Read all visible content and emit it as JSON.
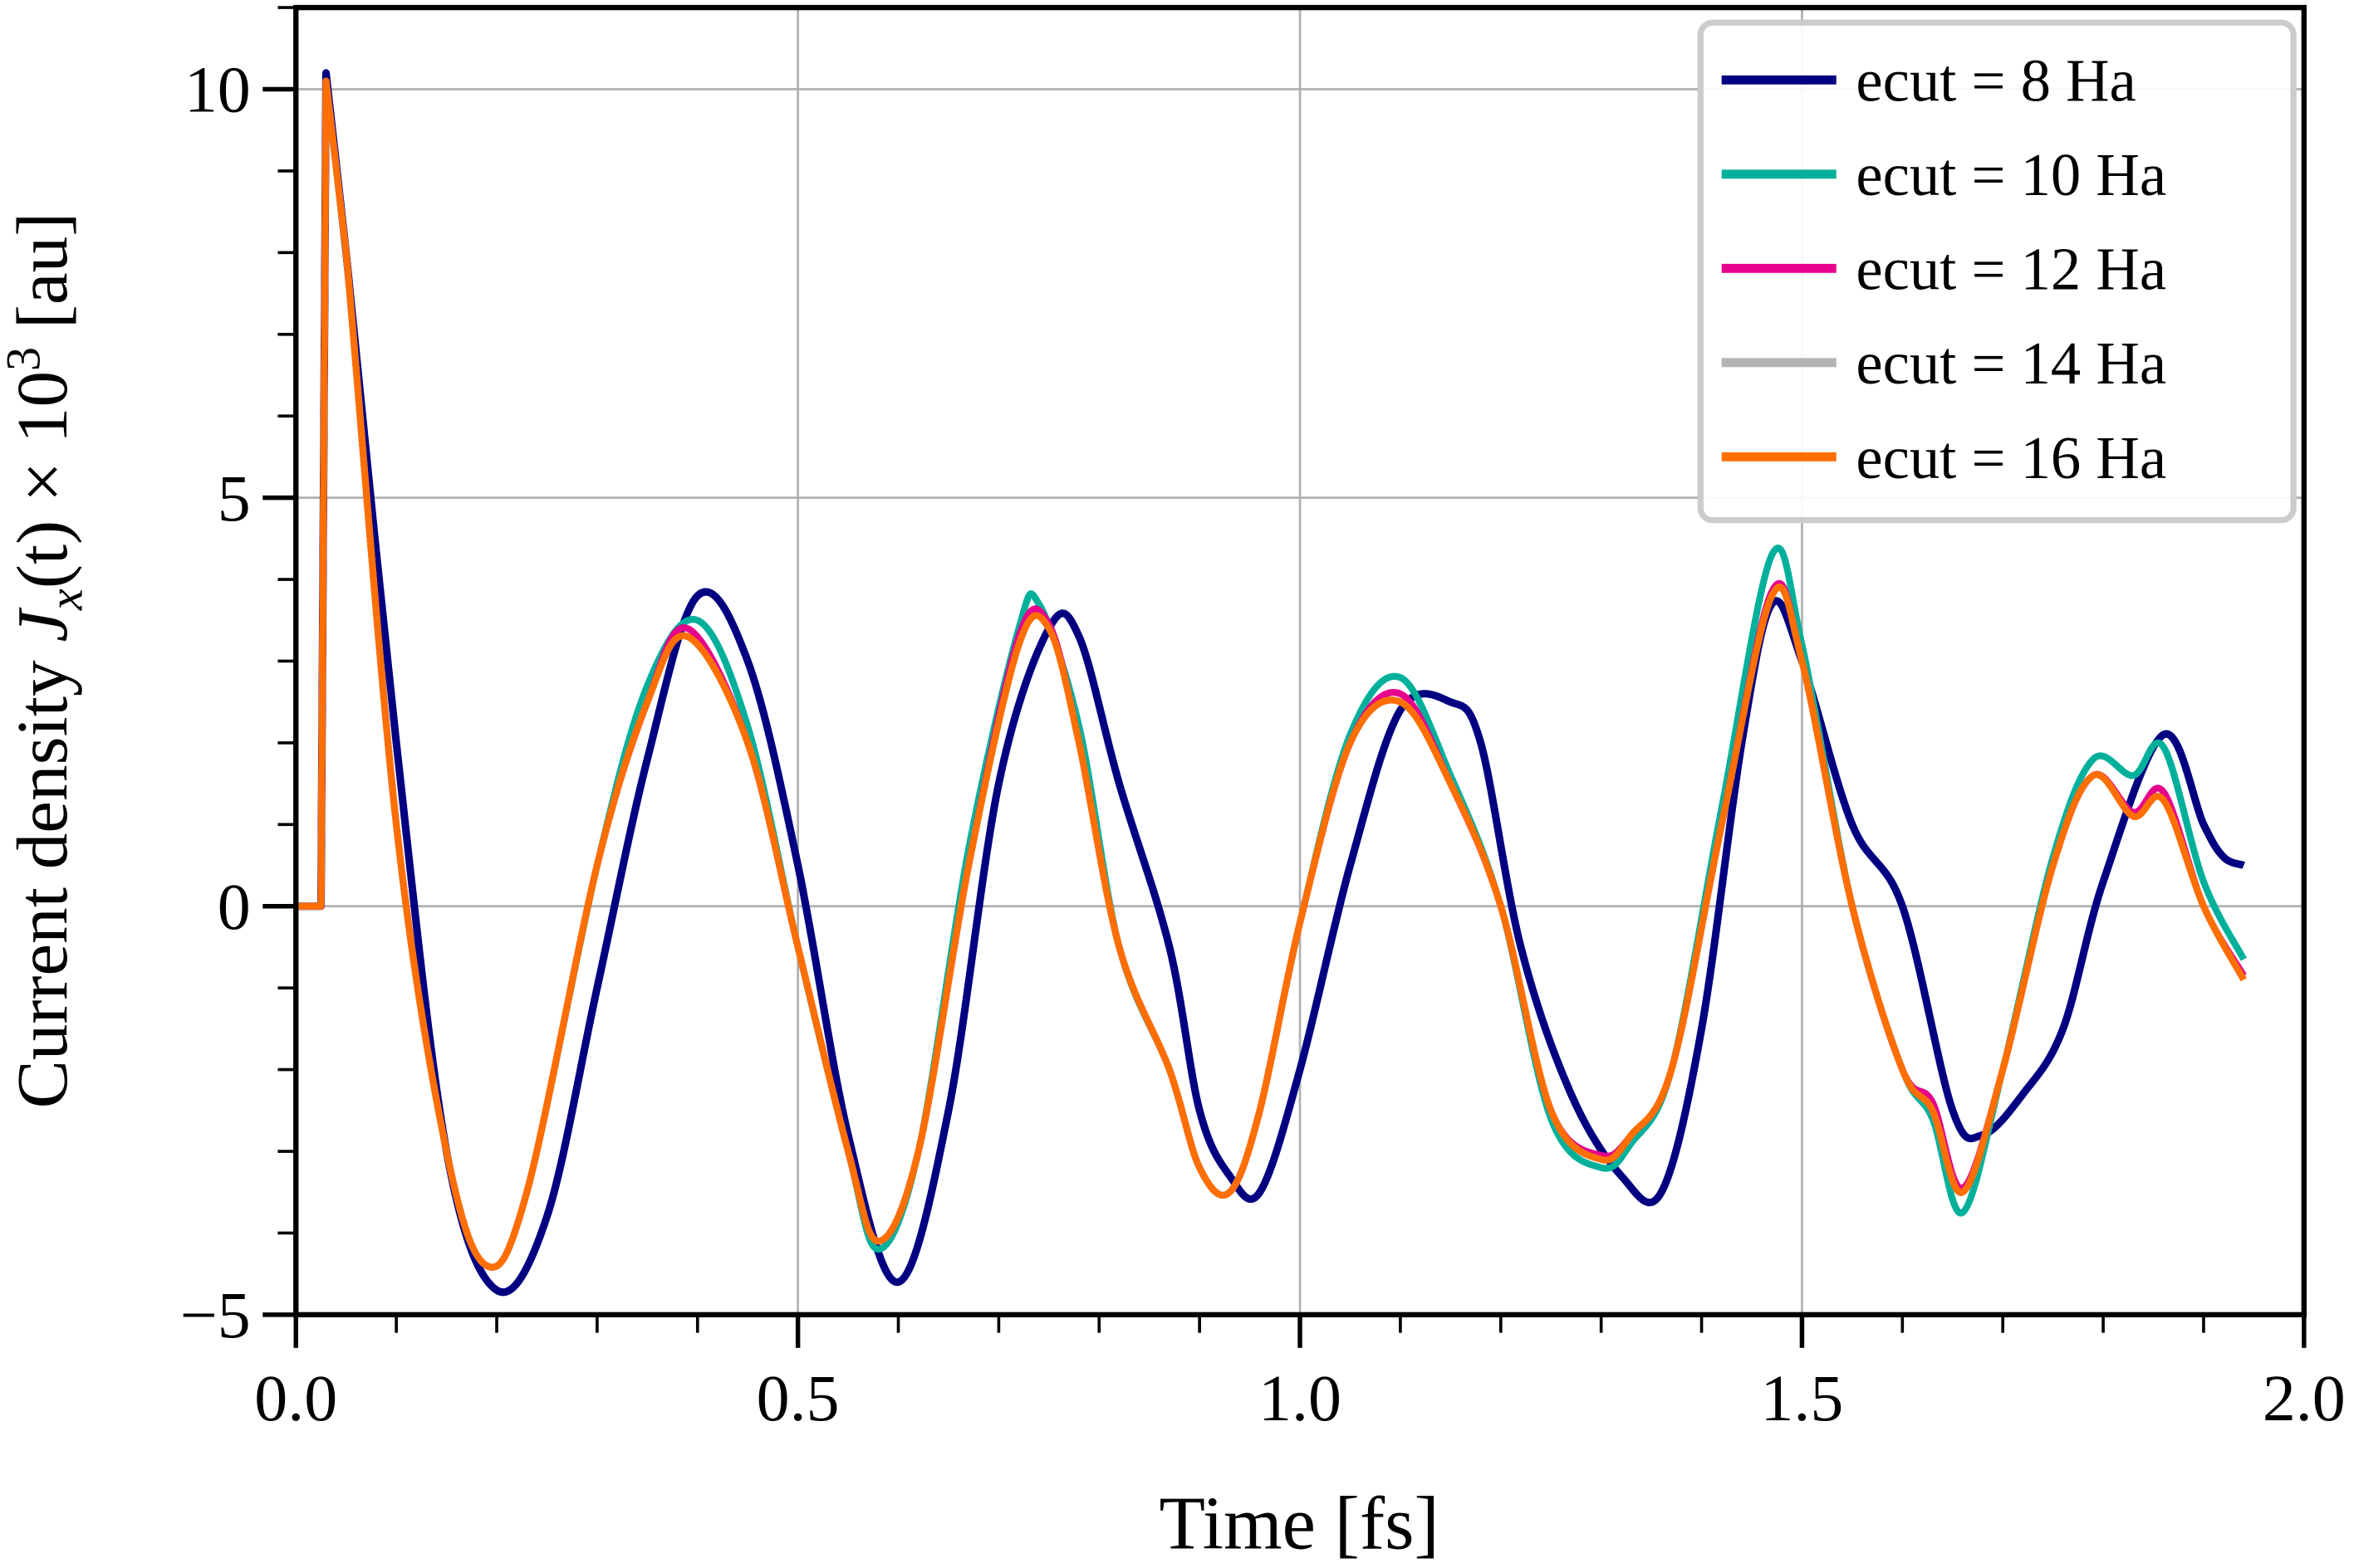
{
  "chart_data": {
    "type": "line",
    "xlabel": "Time [fs]",
    "ylabel_parts": {
      "prefix": "Current density ",
      "J": "J",
      "sub": "x",
      "mid": "(t) × 10",
      "sup": "3",
      "suffix": " [au]"
    },
    "xlim": [
      0.0,
      2.0
    ],
    "ylim": [
      -5,
      11
    ],
    "xticks": [
      0.0,
      0.5,
      1.0,
      1.5,
      2.0
    ],
    "xtick_labels": [
      "0.0",
      "0.5",
      "1.0",
      "1.5",
      "2.0"
    ],
    "yticks": [
      -5,
      0,
      5,
      10
    ],
    "ytick_labels": [
      "−5",
      "0",
      "5",
      "10"
    ],
    "grid": true,
    "legend_position": "top-right",
    "series": [
      {
        "name": "ecut = 8 Ha",
        "color": "#000080",
        "points": [
          [
            0,
            0
          ],
          [
            0.025,
            0
          ],
          [
            0.03,
            10.2
          ],
          [
            0.05,
            8
          ],
          [
            0.1,
            2
          ],
          [
            0.15,
            -3
          ],
          [
            0.2,
            -4.7
          ],
          [
            0.25,
            -3.8
          ],
          [
            0.3,
            -1
          ],
          [
            0.35,
            1.8
          ],
          [
            0.4,
            3.8
          ],
          [
            0.45,
            3
          ],
          [
            0.5,
            0.5
          ],
          [
            0.55,
            -2.8
          ],
          [
            0.6,
            -4.6
          ],
          [
            0.65,
            -2.5
          ],
          [
            0.7,
            1.5
          ],
          [
            0.75,
            3.4
          ],
          [
            0.78,
            3.3
          ],
          [
            0.82,
            1.5
          ],
          [
            0.87,
            -0.5
          ],
          [
            0.9,
            -2.5
          ],
          [
            0.93,
            -3.3
          ],
          [
            0.96,
            -3.5
          ],
          [
            1.0,
            -2
          ],
          [
            1.05,
            0.5
          ],
          [
            1.1,
            2.4
          ],
          [
            1.15,
            2.5
          ],
          [
            1.18,
            2
          ],
          [
            1.22,
            -0.5
          ],
          [
            1.27,
            -2.3
          ],
          [
            1.32,
            -3.3
          ],
          [
            1.36,
            -3.5
          ],
          [
            1.4,
            -1.5
          ],
          [
            1.44,
            2
          ],
          [
            1.47,
            3.7
          ],
          [
            1.5,
            3
          ],
          [
            1.55,
            1
          ],
          [
            1.6,
            0
          ],
          [
            1.65,
            -2.5
          ],
          [
            1.68,
            -2.8
          ],
          [
            1.72,
            -2.3
          ],
          [
            1.76,
            -1.5
          ],
          [
            1.8,
            0.3
          ],
          [
            1.86,
            2.1
          ],
          [
            1.9,
            1
          ],
          [
            1.92,
            0.6
          ],
          [
            1.94,
            0.5
          ]
        ]
      },
      {
        "name": "ecut = 10 Ha",
        "color": "#00b09b",
        "points": [
          [
            0,
            0
          ],
          [
            0.025,
            0
          ],
          [
            0.03,
            10.1
          ],
          [
            0.05,
            8
          ],
          [
            0.1,
            1
          ],
          [
            0.15,
            -3
          ],
          [
            0.19,
            -4.4
          ],
          [
            0.23,
            -3.5
          ],
          [
            0.3,
            0.5
          ],
          [
            0.35,
            2.7
          ],
          [
            0.4,
            3.5
          ],
          [
            0.45,
            2.2
          ],
          [
            0.5,
            -0.5
          ],
          [
            0.55,
            -3
          ],
          [
            0.58,
            -4.2
          ],
          [
            0.62,
            -3
          ],
          [
            0.67,
            0.7
          ],
          [
            0.72,
            3.4
          ],
          [
            0.74,
            3.7
          ],
          [
            0.78,
            2.2
          ],
          [
            0.82,
            -0.5
          ],
          [
            0.87,
            -2
          ],
          [
            0.9,
            -3.2
          ],
          [
            0.93,
            -3.5
          ],
          [
            0.96,
            -2.5
          ],
          [
            1.0,
            -0.2
          ],
          [
            1.05,
            2.1
          ],
          [
            1.1,
            2.8
          ],
          [
            1.15,
            1.6
          ],
          [
            1.2,
            0
          ],
          [
            1.25,
            -2.6
          ],
          [
            1.3,
            -3.2
          ],
          [
            1.33,
            -2.9
          ],
          [
            1.37,
            -2
          ],
          [
            1.42,
            1.2
          ],
          [
            1.47,
            4.3
          ],
          [
            1.5,
            3.2
          ],
          [
            1.55,
            0
          ],
          [
            1.6,
            -2
          ],
          [
            1.63,
            -2.6
          ],
          [
            1.66,
            -3.75
          ],
          [
            1.7,
            -2
          ],
          [
            1.75,
            0.6
          ],
          [
            1.79,
            1.8
          ],
          [
            1.83,
            1.6
          ],
          [
            1.86,
            1.95
          ],
          [
            1.9,
            0.3
          ],
          [
            1.94,
            -0.65
          ]
        ]
      },
      {
        "name": "ecut = 12 Ha",
        "color": "#e6008c",
        "points": [
          [
            0,
            0
          ],
          [
            0.025,
            0
          ],
          [
            0.03,
            10.1
          ],
          [
            0.05,
            8
          ],
          [
            0.1,
            1
          ],
          [
            0.15,
            -3
          ],
          [
            0.19,
            -4.4
          ],
          [
            0.23,
            -3.5
          ],
          [
            0.3,
            0.5
          ],
          [
            0.35,
            2.5
          ],
          [
            0.39,
            3.4
          ],
          [
            0.45,
            2
          ],
          [
            0.5,
            -0.5
          ],
          [
            0.55,
            -3
          ],
          [
            0.58,
            -4.1
          ],
          [
            0.62,
            -3
          ],
          [
            0.67,
            0.5
          ],
          [
            0.72,
            3.3
          ],
          [
            0.75,
            3.45
          ],
          [
            0.78,
            2
          ],
          [
            0.82,
            -0.5
          ],
          [
            0.87,
            -2
          ],
          [
            0.9,
            -3.2
          ],
          [
            0.93,
            -3.5
          ],
          [
            0.96,
            -2.5
          ],
          [
            1.0,
            -0.2
          ],
          [
            1.05,
            2
          ],
          [
            1.1,
            2.6
          ],
          [
            1.15,
            1.5
          ],
          [
            1.2,
            0
          ],
          [
            1.25,
            -2.5
          ],
          [
            1.3,
            -3.05
          ],
          [
            1.33,
            -2.8
          ],
          [
            1.37,
            -2
          ],
          [
            1.42,
            1
          ],
          [
            1.47,
            3.85
          ],
          [
            1.5,
            3
          ],
          [
            1.55,
            0
          ],
          [
            1.6,
            -2
          ],
          [
            1.63,
            -2.4
          ],
          [
            1.66,
            -3.45
          ],
          [
            1.7,
            -2
          ],
          [
            1.75,
            0.5
          ],
          [
            1.79,
            1.6
          ],
          [
            1.83,
            1.15
          ],
          [
            1.86,
            1.4
          ],
          [
            1.9,
            0
          ],
          [
            1.94,
            -0.85
          ]
        ]
      },
      {
        "name": "ecut = 14 Ha",
        "color": "#b3b3b3",
        "points": [
          [
            0,
            0
          ],
          [
            0.025,
            0
          ],
          [
            0.03,
            10.1
          ],
          [
            0.05,
            8
          ],
          [
            0.1,
            1
          ],
          [
            0.15,
            -3
          ],
          [
            0.19,
            -4.4
          ],
          [
            0.23,
            -3.5
          ],
          [
            0.3,
            0.5
          ],
          [
            0.35,
            2.5
          ],
          [
            0.39,
            3.3
          ],
          [
            0.45,
            2
          ],
          [
            0.5,
            -0.5
          ],
          [
            0.55,
            -3
          ],
          [
            0.58,
            -4.1
          ],
          [
            0.62,
            -3
          ],
          [
            0.67,
            0.5
          ],
          [
            0.72,
            3.2
          ],
          [
            0.75,
            3.4
          ],
          [
            0.78,
            2
          ],
          [
            0.82,
            -0.5
          ],
          [
            0.87,
            -2
          ],
          [
            0.9,
            -3.2
          ],
          [
            0.93,
            -3.5
          ],
          [
            0.96,
            -2.5
          ],
          [
            1.0,
            -0.2
          ],
          [
            1.05,
            2
          ],
          [
            1.1,
            2.5
          ],
          [
            1.15,
            1.5
          ],
          [
            1.2,
            0
          ],
          [
            1.25,
            -2.5
          ],
          [
            1.3,
            -3.1
          ],
          [
            1.33,
            -2.8
          ],
          [
            1.37,
            -2
          ],
          [
            1.42,
            1
          ],
          [
            1.47,
            3.8
          ],
          [
            1.5,
            3
          ],
          [
            1.55,
            0
          ],
          [
            1.6,
            -2
          ],
          [
            1.63,
            -2.5
          ],
          [
            1.66,
            -3.5
          ],
          [
            1.7,
            -2
          ],
          [
            1.75,
            0.5
          ],
          [
            1.79,
            1.6
          ],
          [
            1.83,
            1.1
          ],
          [
            1.86,
            1.3
          ],
          [
            1.9,
            0
          ],
          [
            1.94,
            -0.9
          ]
        ]
      },
      {
        "name": "ecut = 16 Ha",
        "color": "#ff6e00",
        "points": [
          [
            0,
            0
          ],
          [
            0.025,
            0
          ],
          [
            0.03,
            10.1
          ],
          [
            0.05,
            8
          ],
          [
            0.1,
            1
          ],
          [
            0.15,
            -3
          ],
          [
            0.19,
            -4.4
          ],
          [
            0.23,
            -3.5
          ],
          [
            0.3,
            0.5
          ],
          [
            0.35,
            2.5
          ],
          [
            0.39,
            3.3
          ],
          [
            0.45,
            2
          ],
          [
            0.5,
            -0.5
          ],
          [
            0.55,
            -3
          ],
          [
            0.58,
            -4.1
          ],
          [
            0.62,
            -3
          ],
          [
            0.67,
            0.5
          ],
          [
            0.72,
            3.2
          ],
          [
            0.75,
            3.4
          ],
          [
            0.78,
            2
          ],
          [
            0.82,
            -0.5
          ],
          [
            0.87,
            -2
          ],
          [
            0.9,
            -3.2
          ],
          [
            0.93,
            -3.5
          ],
          [
            0.96,
            -2.5
          ],
          [
            1.0,
            -0.2
          ],
          [
            1.05,
            2
          ],
          [
            1.1,
            2.5
          ],
          [
            1.15,
            1.5
          ],
          [
            1.2,
            0
          ],
          [
            1.25,
            -2.5
          ],
          [
            1.3,
            -3.1
          ],
          [
            1.33,
            -2.8
          ],
          [
            1.37,
            -2
          ],
          [
            1.42,
            1
          ],
          [
            1.47,
            3.8
          ],
          [
            1.5,
            3
          ],
          [
            1.55,
            0
          ],
          [
            1.6,
            -2
          ],
          [
            1.63,
            -2.5
          ],
          [
            1.66,
            -3.5
          ],
          [
            1.7,
            -2
          ],
          [
            1.75,
            0.5
          ],
          [
            1.79,
            1.6
          ],
          [
            1.83,
            1.1
          ],
          [
            1.86,
            1.3
          ],
          [
            1.9,
            0
          ],
          [
            1.94,
            -0.9
          ]
        ]
      }
    ]
  }
}
